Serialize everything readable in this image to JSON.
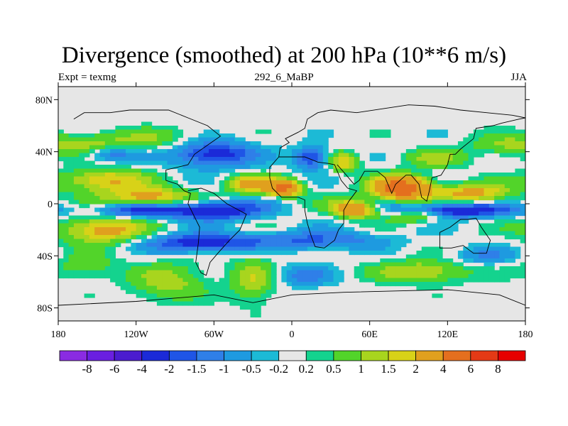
{
  "chart_data": {
    "type": "heatmap",
    "title": "Divergence (smoothed) at 200 hPa (10**6 m/s)",
    "subtitle_left": "Expt = texmg",
    "subtitle_center": "292_6_MaBP",
    "subtitle_right": "JJA",
    "xlim": [
      -180,
      180
    ],
    "ylim": [
      -90,
      90
    ],
    "x_ticks": [
      {
        "value": -180,
        "label": "180"
      },
      {
        "value": -120,
        "label": "120W"
      },
      {
        "value": -60,
        "label": "60W"
      },
      {
        "value": 0,
        "label": "0"
      },
      {
        "value": 60,
        "label": "60E"
      },
      {
        "value": 120,
        "label": "120E"
      },
      {
        "value": 180,
        "label": "180"
      }
    ],
    "y_ticks": [
      {
        "value": 80,
        "label": "80N"
      },
      {
        "value": 40,
        "label": "40N"
      },
      {
        "value": 0,
        "label": "0"
      },
      {
        "value": -40,
        "label": "40S"
      },
      {
        "value": -80,
        "label": "80S"
      }
    ],
    "colorbar": {
      "labels": [
        "-8",
        "-6",
        "-4",
        "-2",
        "-1.5",
        "-1",
        "-0.5",
        "-0.2",
        "0.2",
        "0.5",
        "1",
        "1.5",
        "2",
        "4",
        "6",
        "8"
      ],
      "colors": [
        "#8a2be2",
        "#6a1fe0",
        "#4b1ccf",
        "#1b2ad8",
        "#1f55e6",
        "#2f7fe8",
        "#1e9ae0",
        "#1cbad6",
        "#e6e6e6",
        "#14d38e",
        "#52d42a",
        "#a8d51e",
        "#d8d218",
        "#e0a01e",
        "#e46f1e",
        "#e43a16",
        "#e60000"
      ]
    },
    "fields": [
      {
        "lon": -160,
        "lat": 45,
        "value": 1.2,
        "slon": 22,
        "slat": 6
      },
      {
        "lon": -110,
        "lat": 50,
        "value": 0.9,
        "slon": 25,
        "slat": 6
      },
      {
        "lon": -140,
        "lat": 38,
        "value": -1.6,
        "slon": 14,
        "slat": 4
      },
      {
        "lon": -60,
        "lat": 38,
        "value": -2.5,
        "slon": 22,
        "slat": 7
      },
      {
        "lon": -145,
        "lat": 18,
        "value": 2.2,
        "slon": 22,
        "slat": 6
      },
      {
        "lon": -110,
        "lat": 5,
        "value": 2.6,
        "slon": 22,
        "slat": 5
      },
      {
        "lon": -30,
        "lat": 15,
        "value": 2.4,
        "slon": 14,
        "slat": 5
      },
      {
        "lon": -5,
        "lat": 12,
        "value": 4.2,
        "slon": 9,
        "slat": 4
      },
      {
        "lon": 40,
        "lat": 32,
        "value": 2.0,
        "slon": 8,
        "slat": 5
      },
      {
        "lon": 15,
        "lat": 35,
        "value": -2.2,
        "slon": 9,
        "slat": 6
      },
      {
        "lon": 110,
        "lat": 35,
        "value": 1.1,
        "slon": 18,
        "slat": 5
      },
      {
        "lon": 85,
        "lat": 12,
        "value": 5.5,
        "slon": 15,
        "slat": 6
      },
      {
        "lon": 140,
        "lat": 8,
        "value": 2.4,
        "slon": 20,
        "slat": 5
      },
      {
        "lon": 45,
        "lat": 0,
        "value": 1.0,
        "slon": 12,
        "slat": 5
      },
      {
        "lon": -120,
        "lat": -5,
        "value": -2.2,
        "slon": 22,
        "slat": 4
      },
      {
        "lon": -60,
        "lat": -5,
        "value": -3.0,
        "slon": 25,
        "slat": 5
      },
      {
        "lon": 120,
        "lat": -5,
        "value": -3.0,
        "slon": 35,
        "slat": 4
      },
      {
        "lon": 50,
        "lat": -5,
        "value": 3.0,
        "slon": 12,
        "slat": 4
      },
      {
        "lon": 95,
        "lat": -8,
        "value": 2.2,
        "slon": 15,
        "slat": 4
      },
      {
        "lon": -145,
        "lat": -20,
        "value": 2.5,
        "slon": 22,
        "slat": 7
      },
      {
        "lon": -70,
        "lat": -30,
        "value": -2.5,
        "slon": 30,
        "slat": 5
      },
      {
        "lon": 20,
        "lat": -28,
        "value": -1.6,
        "slon": 35,
        "slat": 5
      },
      {
        "lon": -160,
        "lat": -48,
        "value": 0.9,
        "slon": 18,
        "slat": 7
      },
      {
        "lon": -95,
        "lat": -60,
        "value": 1.3,
        "slon": 20,
        "slat": 10
      },
      {
        "lon": -30,
        "lat": -58,
        "value": 1.4,
        "slon": 12,
        "slat": 12
      },
      {
        "lon": 100,
        "lat": -52,
        "value": 1.6,
        "slon": 25,
        "slat": 6
      },
      {
        "lon": 10,
        "lat": -55,
        "value": -1.2,
        "slon": 15,
        "slat": 6
      },
      {
        "lon": 150,
        "lat": -40,
        "value": -1.0,
        "slon": 18,
        "slat": 5
      },
      {
        "lon": 160,
        "lat": 45,
        "value": 0.8,
        "slon": 18,
        "slat": 6
      }
    ],
    "coastlines": [
      [
        [
          -168,
          65
        ],
        [
          -160,
          70
        ],
        [
          -140,
          70
        ],
        [
          -125,
          72
        ],
        [
          -95,
          72
        ],
        [
          -80,
          66
        ],
        [
          -65,
          60
        ],
        [
          -55,
          52
        ],
        [
          -65,
          45
        ],
        [
          -75,
          38
        ],
        [
          -80,
          30
        ],
        [
          -97,
          26
        ],
        [
          -97,
          18
        ],
        [
          -88,
          15
        ],
        [
          -83,
          10
        ],
        [
          -78,
          8
        ],
        [
          -80,
          0
        ],
        [
          -75,
          -10
        ],
        [
          -71,
          -18
        ],
        [
          -72,
          -30
        ],
        [
          -74,
          -45
        ],
        [
          -70,
          -53
        ],
        [
          -66,
          -55
        ],
        [
          -63,
          -45
        ],
        [
          -57,
          -38
        ],
        [
          -48,
          -28
        ],
        [
          -40,
          -20
        ],
        [
          -35,
          -8
        ],
        [
          -50,
          0
        ],
        [
          -60,
          8
        ],
        [
          -70,
          12
        ],
        [
          -80,
          10
        ]
      ],
      [
        [
          -10,
          36
        ],
        [
          -9,
          43
        ],
        [
          -2,
          47
        ],
        [
          -5,
          50
        ],
        [
          5,
          55
        ],
        [
          10,
          58
        ],
        [
          12,
          65
        ],
        [
          20,
          70
        ],
        [
          30,
          72
        ],
        [
          50,
          70
        ],
        [
          70,
          73
        ],
        [
          90,
          76
        ],
        [
          110,
          75
        ],
        [
          130,
          72
        ],
        [
          150,
          70
        ],
        [
          170,
          68
        ],
        [
          180,
          66
        ]
      ],
      [
        [
          -10,
          36
        ],
        [
          -17,
          28
        ],
        [
          -17,
          20
        ],
        [
          -15,
          12
        ],
        [
          -8,
          5
        ],
        [
          5,
          5
        ],
        [
          10,
          3
        ],
        [
          10,
          -5
        ],
        [
          12,
          -15
        ],
        [
          15,
          -25
        ],
        [
          18,
          -33
        ],
        [
          25,
          -34
        ],
        [
          33,
          -28
        ],
        [
          36,
          -20
        ],
        [
          40,
          -15
        ],
        [
          40,
          -5
        ],
        [
          44,
          2
        ],
        [
          50,
          10
        ],
        [
          43,
          12
        ],
        [
          38,
          18
        ],
        [
          33,
          30
        ],
        [
          28,
          31
        ],
        [
          20,
          32
        ],
        [
          10,
          36
        ],
        [
          0,
          36
        ],
        [
          -10,
          36
        ]
      ],
      [
        [
          35,
          30
        ],
        [
          42,
          22
        ],
        [
          48,
          15
        ],
        [
          52,
          18
        ],
        [
          56,
          25
        ],
        [
          58,
          25
        ],
        [
          66,
          25
        ],
        [
          72,
          20
        ],
        [
          77,
          8
        ],
        [
          80,
          15
        ],
        [
          88,
          22
        ],
        [
          92,
          22
        ],
        [
          98,
          15
        ],
        [
          100,
          5
        ],
        [
          104,
          2
        ],
        [
          106,
          10
        ],
        [
          108,
          20
        ],
        [
          115,
          22
        ],
        [
          120,
          30
        ],
        [
          122,
          38
        ],
        [
          126,
          38
        ],
        [
          130,
          42
        ],
        [
          140,
          50
        ],
        [
          142,
          58
        ],
        [
          155,
          60
        ],
        [
          162,
          62
        ],
        [
          175,
          65
        ],
        [
          180,
          66
        ]
      ],
      [
        [
          114,
          -22
        ],
        [
          114,
          -34
        ],
        [
          123,
          -34
        ],
        [
          132,
          -32
        ],
        [
          140,
          -38
        ],
        [
          150,
          -38
        ],
        [
          153,
          -28
        ],
        [
          146,
          -18
        ],
        [
          142,
          -11
        ],
        [
          136,
          -12
        ],
        [
          130,
          -12
        ],
        [
          122,
          -18
        ],
        [
          114,
          -22
        ]
      ],
      [
        [
          -180,
          -78
        ],
        [
          -120,
          -75
        ],
        [
          -60,
          -70
        ],
        [
          -30,
          -76
        ],
        [
          0,
          -70
        ],
        [
          40,
          -68
        ],
        [
          80,
          -67
        ],
        [
          120,
          -66
        ],
        [
          160,
          -70
        ],
        [
          180,
          -78
        ]
      ]
    ]
  }
}
